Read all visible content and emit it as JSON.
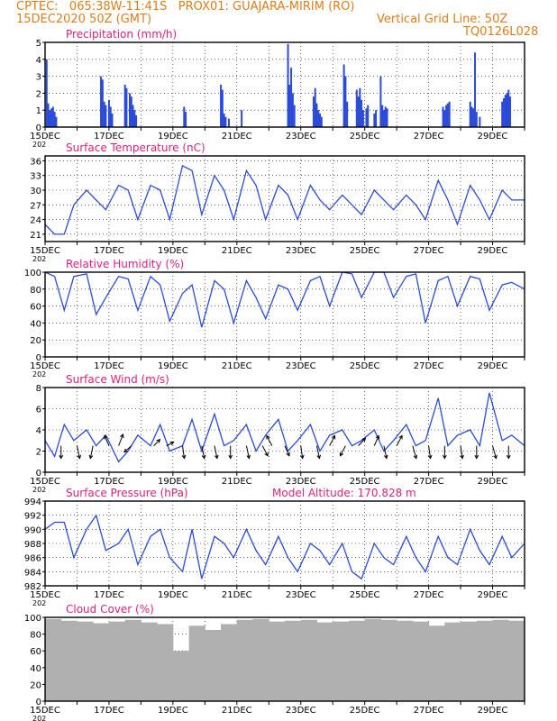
{
  "header": {
    "line1": "CPTEC:   065:38W-11:41S   PROX01: GUAJARA-MIRIM (RO)",
    "line2": "15DEC2020 50Z (GMT)",
    "grid_note": "Vertical Grid Line: 50Z",
    "code": "TQ0126L028",
    "model_altitude": "Model Altitude: 170.828  m"
  },
  "colors": {
    "header": "#e07d1a",
    "panel_title": "#e0207a",
    "series": "#2a4bd8",
    "cloud": "#b0b0b0",
    "arrow": "#000000"
  },
  "x_axis": {
    "tick_labels": [
      "15DEC",
      "17DEC",
      "19DEC",
      "21DEC",
      "23DEC",
      "25DEC",
      "27DEC",
      "29DEC"
    ],
    "tick_days": [
      0,
      2,
      4,
      6,
      8,
      10,
      12,
      14
    ],
    "range_days": [
      0,
      15
    ],
    "sub_label": "202"
  },
  "chart_data": [
    {
      "type": "bar",
      "title": "Precipitation (mm/h)",
      "ylim": [
        0,
        5
      ],
      "yticks": [
        0,
        1,
        2,
        3,
        4,
        5
      ],
      "x": [
        0.05,
        0.1,
        0.15,
        0.2,
        0.25,
        0.3,
        0.35,
        1.75,
        1.8,
        1.85,
        1.9,
        2.0,
        2.05,
        2.1,
        2.5,
        2.55,
        2.65,
        2.7,
        2.75,
        2.8,
        2.85,
        4.35,
        4.4,
        5.5,
        5.55,
        5.6,
        5.65,
        5.75,
        6.15,
        7.6,
        7.65,
        7.7,
        7.75,
        7.8,
        8.4,
        8.45,
        8.5,
        8.55,
        8.6,
        8.65,
        9.35,
        9.4,
        9.45,
        9.75,
        9.8,
        9.85,
        9.9,
        9.95,
        10.05,
        10.1,
        10.3,
        10.35,
        10.5,
        10.55,
        10.6,
        10.65,
        10.7,
        12.45,
        12.5,
        12.55,
        12.6,
        12.65,
        13.3,
        13.35,
        13.4,
        13.45,
        13.5,
        13.6,
        14.3,
        14.35,
        14.4,
        14.45,
        14.5,
        14.55
      ],
      "values": [
        4.0,
        1.4,
        1.0,
        1.1,
        1.2,
        0.9,
        0.6,
        3.0,
        2.8,
        1.5,
        1.3,
        1.6,
        1.2,
        0.8,
        2.5,
        2.3,
        2.0,
        1.8,
        1.3,
        1.0,
        0.7,
        1.2,
        0.9,
        2.5,
        2.2,
        0.8,
        0.6,
        0.5,
        1.0,
        4.9,
        2.5,
        3.5,
        2.0,
        1.3,
        1.8,
        2.3,
        1.4,
        1.0,
        0.8,
        0.6,
        3.7,
        3.0,
        1.5,
        2.2,
        1.8,
        2.3,
        1.6,
        1.0,
        1.1,
        1.3,
        0.8,
        1.0,
        3.0,
        1.3,
        1.0,
        1.2,
        1.1,
        1.2,
        1.0,
        1.3,
        1.4,
        1.5,
        1.5,
        1.2,
        1.1,
        4.4,
        0.9,
        0.6,
        1.5,
        1.7,
        1.9,
        2.0,
        2.2,
        1.8
      ]
    },
    {
      "type": "line",
      "title": "Surface Temperature (nC)",
      "ylim": [
        19.5,
        37
      ],
      "yticks": [
        21,
        24,
        27,
        30,
        33,
        36
      ],
      "x": [
        0,
        0.3,
        0.6,
        0.9,
        1.3,
        1.6,
        1.9,
        2.3,
        2.6,
        2.9,
        3.3,
        3.6,
        3.9,
        4.3,
        4.6,
        4.9,
        5.3,
        5.6,
        5.9,
        6.3,
        6.6,
        6.9,
        7.3,
        7.6,
        7.9,
        8.3,
        8.6,
        8.9,
        9.3,
        9.6,
        9.9,
        10.3,
        10.6,
        10.9,
        11.3,
        11.6,
        11.9,
        12.3,
        12.6,
        12.9,
        13.3,
        13.6,
        13.9,
        14.3,
        14.6,
        15.0
      ],
      "values": [
        23,
        21,
        21,
        27,
        30,
        28,
        26,
        31,
        30,
        24,
        31,
        30,
        24,
        35,
        34,
        25,
        33,
        30,
        24,
        34,
        31,
        24,
        31,
        29,
        24,
        31,
        28,
        26,
        29,
        27,
        25,
        30,
        28,
        26,
        29,
        27,
        24,
        32,
        28,
        23,
        31,
        28,
        24,
        30,
        28,
        28
      ]
    },
    {
      "type": "line",
      "title": "Relative Humidity (%)",
      "ylim": [
        0,
        100
      ],
      "yticks": [
        0,
        20,
        40,
        60,
        80,
        100
      ],
      "x": [
        0,
        0.3,
        0.6,
        0.9,
        1.3,
        1.6,
        1.9,
        2.3,
        2.6,
        2.9,
        3.3,
        3.6,
        3.9,
        4.3,
        4.6,
        4.9,
        5.3,
        5.6,
        5.9,
        6.3,
        6.6,
        6.9,
        7.3,
        7.6,
        7.9,
        8.3,
        8.6,
        8.9,
        9.3,
        9.6,
        9.9,
        10.3,
        10.6,
        10.9,
        11.3,
        11.6,
        11.9,
        12.3,
        12.6,
        12.9,
        13.3,
        13.6,
        13.9,
        14.3,
        14.6,
        15.0
      ],
      "values": [
        100,
        95,
        55,
        95,
        98,
        50,
        70,
        95,
        92,
        55,
        95,
        85,
        42,
        75,
        85,
        35,
        90,
        80,
        40,
        90,
        70,
        45,
        85,
        80,
        55,
        90,
        95,
        60,
        100,
        98,
        70,
        100,
        100,
        70,
        95,
        98,
        40,
        90,
        95,
        60,
        95,
        92,
        55,
        85,
        88,
        80
      ]
    },
    {
      "type": "line",
      "title": "Surface Wind (m/s)",
      "ylim": [
        0,
        8
      ],
      "yticks": [
        0,
        2,
        4,
        6,
        8
      ],
      "x": [
        0,
        0.3,
        0.6,
        0.9,
        1.3,
        1.6,
        1.9,
        2.3,
        2.6,
        2.9,
        3.3,
        3.6,
        3.9,
        4.3,
        4.6,
        4.9,
        5.3,
        5.6,
        5.9,
        6.3,
        6.6,
        6.9,
        7.3,
        7.6,
        7.9,
        8.3,
        8.6,
        8.9,
        9.3,
        9.6,
        9.9,
        10.3,
        10.6,
        10.9,
        11.3,
        11.6,
        11.9,
        12.3,
        12.6,
        12.9,
        13.3,
        13.6,
        13.9,
        14.3,
        14.6,
        15.0
      ],
      "values": [
        3,
        1.5,
        4.5,
        3,
        4,
        2.5,
        3.5,
        1,
        2,
        3.5,
        2.5,
        4.5,
        2,
        2.5,
        5,
        2,
        5.5,
        2.5,
        3,
        4.5,
        2,
        3.5,
        5,
        2,
        3,
        4.5,
        2,
        3.5,
        4,
        2.5,
        3,
        4,
        2,
        3,
        4.5,
        2.5,
        3,
        7,
        2.5,
        3.5,
        4,
        2.5,
        7.5,
        3,
        3.5,
        2.5
      ],
      "arrows": [
        {
          "x": 0.5,
          "dx": 0,
          "dy": -1
        },
        {
          "x": 1.0,
          "dx": 0.3,
          "dy": -1
        },
        {
          "x": 1.5,
          "dx": -0.3,
          "dy": -1
        },
        {
          "x": 2.0,
          "dx": -0.5,
          "dy": 0.8
        },
        {
          "x": 2.3,
          "dx": 0.5,
          "dy": 0.9
        },
        {
          "x": 2.7,
          "dx": -0.8,
          "dy": -0.5
        },
        {
          "x": 3.4,
          "dx": 0.7,
          "dy": 0.5
        },
        {
          "x": 3.8,
          "dx": 0.8,
          "dy": 0.3
        },
        {
          "x": 4.3,
          "dx": 0.2,
          "dy": -1
        },
        {
          "x": 4.9,
          "dx": 0.3,
          "dy": -1
        },
        {
          "x": 5.3,
          "dx": 0.3,
          "dy": -1
        },
        {
          "x": 5.8,
          "dx": 0,
          "dy": -1
        },
        {
          "x": 6.3,
          "dx": 0.3,
          "dy": -1
        },
        {
          "x": 6.8,
          "dx": 0.6,
          "dy": -0.8
        },
        {
          "x": 7.1,
          "dx": -0.6,
          "dy": 0.8
        },
        {
          "x": 7.5,
          "dx": 0.5,
          "dy": -0.8
        },
        {
          "x": 8.0,
          "dx": 0.2,
          "dy": -1
        },
        {
          "x": 8.5,
          "dx": 0.3,
          "dy": -1
        },
        {
          "x": 8.9,
          "dx": 0.6,
          "dy": 0.8
        },
        {
          "x": 9.4,
          "dx": -0.6,
          "dy": -0.8
        },
        {
          "x": 9.8,
          "dx": 0.8,
          "dy": 0.6
        },
        {
          "x": 10.3,
          "dx": 0.5,
          "dy": 0.8
        },
        {
          "x": 10.6,
          "dx": 0.3,
          "dy": -1
        },
        {
          "x": 11.0,
          "dx": 0.6,
          "dy": 0.8
        },
        {
          "x": 11.5,
          "dx": 0.4,
          "dy": -1
        },
        {
          "x": 12.0,
          "dx": 0.2,
          "dy": -1
        },
        {
          "x": 12.5,
          "dx": 0,
          "dy": -1
        },
        {
          "x": 13.0,
          "dx": 0.2,
          "dy": -1
        },
        {
          "x": 13.5,
          "dx": 0,
          "dy": -1
        },
        {
          "x": 14.0,
          "dx": 0.4,
          "dy": -1
        },
        {
          "x": 14.5,
          "dx": 0,
          "dy": -1
        }
      ]
    },
    {
      "type": "line",
      "title": "Surface Pressure (hPa)",
      "ylim": [
        982,
        994
      ],
      "yticks": [
        982,
        984,
        986,
        988,
        990,
        992,
        994
      ],
      "x": [
        0,
        0.3,
        0.6,
        0.9,
        1.3,
        1.6,
        1.9,
        2.3,
        2.6,
        2.9,
        3.3,
        3.6,
        3.9,
        4.3,
        4.6,
        4.9,
        5.3,
        5.6,
        5.9,
        6.3,
        6.6,
        6.9,
        7.3,
        7.6,
        7.9,
        8.3,
        8.6,
        8.9,
        9.3,
        9.6,
        9.9,
        10.3,
        10.6,
        10.9,
        11.3,
        11.6,
        11.9,
        12.3,
        12.6,
        12.9,
        13.3,
        13.6,
        13.9,
        14.3,
        14.6,
        15.0
      ],
      "values": [
        990,
        991,
        991,
        986,
        990,
        992,
        987,
        988,
        990,
        985,
        989,
        990,
        986,
        984,
        990,
        983,
        989,
        988,
        986,
        990,
        987,
        985,
        989,
        986,
        984,
        988,
        987,
        985,
        988,
        984,
        983,
        988,
        986,
        985,
        989,
        986,
        984,
        989,
        986,
        985,
        990,
        987,
        985,
        989,
        986,
        988
      ]
    },
    {
      "type": "bar",
      "title": "Cloud Cover (%)",
      "ylim": [
        0,
        100
      ],
      "yticks": [
        0,
        20,
        40,
        60,
        80,
        100
      ],
      "x": [
        0,
        0.5,
        1.0,
        1.5,
        2.0,
        2.5,
        3.0,
        3.5,
        4.0,
        4.5,
        5.0,
        5.5,
        6.0,
        6.5,
        7.0,
        7.5,
        8.0,
        8.5,
        9.0,
        9.5,
        10.0,
        10.5,
        11.0,
        11.5,
        12.0,
        12.5,
        13.0,
        13.5,
        14.0,
        14.5
      ],
      "values": [
        98,
        96,
        95,
        93,
        95,
        97,
        94,
        92,
        60,
        90,
        85,
        92,
        97,
        98,
        95,
        96,
        97,
        94,
        95,
        96,
        98,
        97,
        96,
        95,
        90,
        94,
        95,
        96,
        97,
        96
      ]
    }
  ]
}
